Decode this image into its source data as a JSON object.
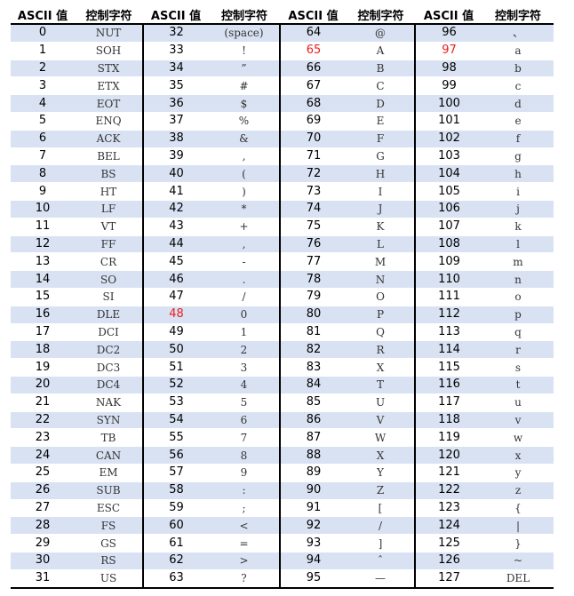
{
  "headers": [
    "ASCII 值",
    "控制字符",
    "ASCII 值",
    "控制字符",
    "ASCII 值",
    "控制字符",
    "ASCII 值",
    "控制字符"
  ],
  "highlight_color": "#e8201c",
  "shading_color": "#d9e2f3",
  "highlighted_codes": [
    "48",
    "65",
    "97"
  ],
  "rows": [
    [
      "0",
      "NUT",
      "32",
      "(space)",
      "64",
      "@",
      "96",
      "、"
    ],
    [
      "1",
      "SOH",
      "33",
      "!",
      "65",
      "A",
      "97",
      "a"
    ],
    [
      "2",
      "STX",
      "34",
      "”",
      "66",
      "B",
      "98",
      "b"
    ],
    [
      "3",
      "ETX",
      "35",
      "#",
      "67",
      "C",
      "99",
      "c"
    ],
    [
      "4",
      "EOT",
      "36",
      "$",
      "68",
      "D",
      "100",
      "d"
    ],
    [
      "5",
      "ENQ",
      "37",
      "%",
      "69",
      "E",
      "101",
      "e"
    ],
    [
      "6",
      "ACK",
      "38",
      "&",
      "70",
      "F",
      "102",
      "f"
    ],
    [
      "7",
      "BEL",
      "39",
      ",",
      "71",
      "G",
      "103",
      "g"
    ],
    [
      "8",
      "BS",
      "40",
      "(",
      "72",
      "H",
      "104",
      "h"
    ],
    [
      "9",
      "HT",
      "41",
      ")",
      "73",
      "I",
      "105",
      "i"
    ],
    [
      "10",
      "LF",
      "42",
      "*",
      "74",
      "J",
      "106",
      "j"
    ],
    [
      "11",
      "VT",
      "43",
      "+",
      "75",
      "K",
      "107",
      "k"
    ],
    [
      "12",
      "FF",
      "44",
      ",",
      "76",
      "L",
      "108",
      "l"
    ],
    [
      "13",
      "CR",
      "45",
      "-",
      "77",
      "M",
      "109",
      "m"
    ],
    [
      "14",
      "SO",
      "46",
      ".",
      "78",
      "N",
      "110",
      "n"
    ],
    [
      "15",
      "SI",
      "47",
      "/",
      "79",
      "O",
      "111",
      "o"
    ],
    [
      "16",
      "DLE",
      "48",
      "0",
      "80",
      "P",
      "112",
      "p"
    ],
    [
      "17",
      "DCI",
      "49",
      "1",
      "81",
      "Q",
      "113",
      "q"
    ],
    [
      "18",
      "DC2",
      "50",
      "2",
      "82",
      "R",
      "114",
      "r"
    ],
    [
      "19",
      "DC3",
      "51",
      "3",
      "83",
      "X",
      "115",
      "s"
    ],
    [
      "20",
      "DC4",
      "52",
      "4",
      "84",
      "T",
      "116",
      "t"
    ],
    [
      "21",
      "NAK",
      "53",
      "5",
      "85",
      "U",
      "117",
      "u"
    ],
    [
      "22",
      "SYN",
      "54",
      "6",
      "86",
      "V",
      "118",
      "v"
    ],
    [
      "23",
      "TB",
      "55",
      "7",
      "87",
      "W",
      "119",
      "w"
    ],
    [
      "24",
      "CAN",
      "56",
      "8",
      "88",
      "X",
      "120",
      "x"
    ],
    [
      "25",
      "EM",
      "57",
      "9",
      "89",
      "Y",
      "121",
      "y"
    ],
    [
      "26",
      "SUB",
      "58",
      ":",
      "90",
      "Z",
      "122",
      "z"
    ],
    [
      "27",
      "ESC",
      "59",
      ";",
      "91",
      "[",
      "123",
      "{"
    ],
    [
      "28",
      "FS",
      "60",
      "<",
      "92",
      "/",
      "124",
      "|"
    ],
    [
      "29",
      "GS",
      "61",
      "=",
      "93",
      "]",
      "125",
      "}"
    ],
    [
      "30",
      "RS",
      "62",
      ">",
      "94",
      "ˆ",
      "126",
      "~"
    ],
    [
      "31",
      "US",
      "63",
      "?",
      "95",
      "—",
      "127",
      "DEL"
    ]
  ]
}
